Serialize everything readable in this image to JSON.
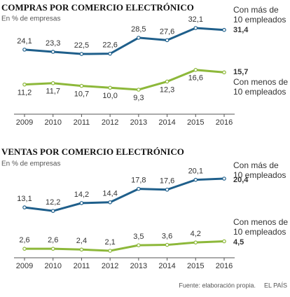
{
  "chart_data": [
    {
      "type": "line",
      "title": "COMPRAS POR COMERCIO ELECTRÓNICO",
      "subtitle": "En % de empresas",
      "categories": [
        "2009",
        "2010",
        "2011",
        "2012",
        "2013",
        "2014",
        "2015",
        "2016"
      ],
      "series": [
        {
          "name": "Con más de 10 empleados",
          "color": "#1f5f8b",
          "values": [
            24.1,
            23.3,
            22.5,
            22.6,
            28.5,
            27.6,
            32.1,
            31.4
          ],
          "value_labels": [
            "24,1",
            "23,3",
            "22,5",
            "22,6",
            "28,5",
            "27,6",
            "32,1",
            "31,4"
          ]
        },
        {
          "name": "Con menos de 10 empleados",
          "color": "#8db83a",
          "values": [
            11.2,
            11.7,
            10.7,
            10.0,
            9.3,
            12.3,
            16.6,
            15.7
          ],
          "value_labels": [
            "11,2",
            "11,7",
            "10,7",
            "10,0",
            "9,3",
            "12,3",
            "16,6",
            "15,7"
          ]
        }
      ]
    },
    {
      "type": "line",
      "title": "VENTAS POR COMERCIO ELECTRÓNICO",
      "subtitle": "En % de empresas",
      "categories": [
        "2009",
        "2010",
        "2011",
        "2012",
        "2013",
        "2014",
        "2015",
        "2016"
      ],
      "series": [
        {
          "name": "Con más de 10 empleados",
          "color": "#1f5f8b",
          "values": [
            13.1,
            12.2,
            14.2,
            14.4,
            17.8,
            17.6,
            20.1,
            20.4
          ],
          "value_labels": [
            "13,1",
            "12,2",
            "14,2",
            "14,4",
            "17,8",
            "17,6",
            "20,1",
            "20,4"
          ]
        },
        {
          "name": "Con menos de 10 empleados",
          "color": "#8db83a",
          "values": [
            2.6,
            2.6,
            2.4,
            2.1,
            3.5,
            3.6,
            4.2,
            4.5
          ],
          "value_labels": [
            "2,6",
            "2,6",
            "2,4",
            "2,1",
            "3,5",
            "3,6",
            "4,2",
            "4,5"
          ]
        }
      ]
    }
  ],
  "footer": {
    "source": "Fuente: elaboración propia.",
    "brand": "EL PAÍS"
  }
}
